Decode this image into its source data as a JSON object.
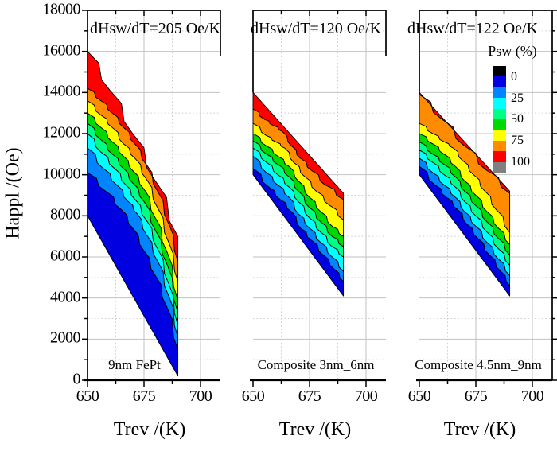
{
  "figure": {
    "bg": "#ffffff"
  },
  "axes": {
    "y_title": "Happl /(Oe)",
    "x_title": "Trev /(K)",
    "y_tick_labels": [
      "0",
      "2000",
      "4000",
      "6000",
      "8000",
      "10000",
      "12000",
      "14000",
      "16000",
      "18000"
    ],
    "x_tick_labels": [
      "650",
      "675",
      "700"
    ]
  },
  "legend": {
    "title": "Psw (%)",
    "tick_labels": [
      "0",
      "25",
      "50",
      "75",
      "100"
    ],
    "colors": [
      "#000000",
      "#0000E0",
      "#0084FF",
      "#00FFFF",
      "#00FF85",
      "#00D900",
      "#FFFF00",
      "#FF8C00",
      "#FF0000",
      "#808080"
    ]
  },
  "chart_data": {
    "type": "contour-filled",
    "xlabel": "Trev /(K)",
    "ylabel": "Happl /(Oe)",
    "x_range": [
      650,
      710
    ],
    "y_range": [
      0,
      18000
    ],
    "x_major_ticks": [
      650,
      675,
      700
    ],
    "x_minor_ticks": [
      662.5,
      687.5
    ],
    "y_major_step": 2000,
    "y_minor_step": 1000,
    "psw_levels_percent": [
      0,
      12.5,
      25,
      37.5,
      50,
      62.5,
      75,
      87.5,
      100
    ],
    "band_colors": [
      "#0000E0",
      "#0084FF",
      "#00FFFF",
      "#00FF85",
      "#00D900",
      "#FFFF00",
      "#FF8C00",
      "#FF0000"
    ],
    "panels": [
      {
        "annotation": "dHsw/dT=205 Oe/K",
        "sample_label": "9nm FePt",
        "boundaries": [
          [
            [
              650,
              8000
            ],
            [
              690,
              200
            ]
          ],
          [
            [
              650,
              10100
            ],
            [
              658,
              9200
            ],
            [
              665,
              8300
            ],
            [
              670,
              7400
            ],
            [
              675,
              6300
            ],
            [
              680,
              5100
            ],
            [
              685,
              3600
            ],
            [
              690,
              1500
            ]
          ],
          [
            [
              650,
              11300
            ],
            [
              657,
              10300
            ],
            [
              663,
              9500
            ],
            [
              668,
              8700
            ],
            [
              672,
              8100
            ],
            [
              676,
              7100
            ],
            [
              681,
              5800
            ],
            [
              686,
              4100
            ],
            [
              690,
              2100
            ]
          ],
          [
            [
              650,
              12000
            ],
            [
              656,
              11100
            ],
            [
              662,
              10300
            ],
            [
              667,
              9500
            ],
            [
              671,
              8800
            ],
            [
              676,
              7800
            ],
            [
              681,
              6400
            ],
            [
              686,
              4700
            ],
            [
              690,
              2700
            ]
          ],
          [
            [
              650,
              12500
            ],
            [
              656,
              11700
            ],
            [
              661,
              11000
            ],
            [
              666,
              10300
            ],
            [
              670,
              9600
            ],
            [
              675,
              8700
            ],
            [
              680,
              7300
            ],
            [
              685,
              5700
            ],
            [
              690,
              3300
            ]
          ],
          [
            [
              650,
              13000
            ],
            [
              656,
              12300
            ],
            [
              661,
              11600
            ],
            [
              666,
              10900
            ],
            [
              670,
              10200
            ],
            [
              675,
              9300
            ],
            [
              680,
              7900
            ],
            [
              685,
              6300
            ],
            [
              690,
              3900
            ]
          ],
          [
            [
              650,
              13600
            ],
            [
              656,
              12900
            ],
            [
              661,
              12300
            ],
            [
              666,
              11500
            ],
            [
              671,
              10800
            ],
            [
              676,
              9800
            ],
            [
              681,
              8400
            ],
            [
              686,
              6700
            ],
            [
              690,
              4800
            ]
          ],
          [
            [
              650,
              14200
            ],
            [
              656,
              13600
            ],
            [
              661,
              13000
            ],
            [
              666,
              12300
            ],
            [
              671,
              11500
            ],
            [
              676,
              10500
            ],
            [
              681,
              9200
            ],
            [
              686,
              7600
            ],
            [
              690,
              5800
            ]
          ],
          [
            [
              650,
              16000
            ],
            [
              660,
              14100
            ],
            [
              670,
              12000
            ],
            [
              680,
              9700
            ],
            [
              690,
              7000
            ]
          ]
        ]
      },
      {
        "annotation": "dHsw/dT=120 Oe/K",
        "sample_label": "Composite 3nm_6nm",
        "boundaries": [
          [
            [
              650,
              10000
            ],
            [
              690,
              4100
            ]
          ],
          [
            [
              650,
              10300
            ],
            [
              657,
              9400
            ],
            [
              662,
              8800
            ],
            [
              667,
              8200
            ],
            [
              671,
              7400
            ],
            [
              676,
              6800
            ],
            [
              681,
              6100
            ],
            [
              686,
              5400
            ],
            [
              690,
              4800
            ]
          ],
          [
            [
              650,
              10900
            ],
            [
              656,
              10100
            ],
            [
              661,
              9500
            ],
            [
              666,
              8900
            ],
            [
              670,
              8100
            ],
            [
              675,
              7400
            ],
            [
              680,
              6700
            ],
            [
              685,
              6000
            ],
            [
              690,
              5300
            ]
          ],
          [
            [
              650,
              11300
            ],
            [
              656,
              10600
            ],
            [
              661,
              10000
            ],
            [
              666,
              9400
            ],
            [
              670,
              8700
            ],
            [
              675,
              7900
            ],
            [
              680,
              7200
            ],
            [
              685,
              6500
            ],
            [
              690,
              6000
            ]
          ],
          [
            [
              650,
              11650
            ],
            [
              656,
              11000
            ],
            [
              661,
              10500
            ],
            [
              666,
              9900
            ],
            [
              670,
              9200
            ],
            [
              675,
              8400
            ],
            [
              680,
              7700
            ],
            [
              685,
              7000
            ],
            [
              690,
              6500
            ]
          ],
          [
            [
              650,
              12000
            ],
            [
              656,
              11400
            ],
            [
              661,
              10900
            ],
            [
              666,
              10400
            ],
            [
              670,
              9700
            ],
            [
              675,
              8900
            ],
            [
              680,
              8200
            ],
            [
              685,
              7500
            ],
            [
              690,
              7000
            ]
          ],
          [
            [
              650,
              12500
            ],
            [
              656,
              11900
            ],
            [
              660,
              11600
            ],
            [
              664,
              11300
            ],
            [
              668,
              10600
            ],
            [
              673,
              9900
            ],
            [
              678,
              9200
            ],
            [
              684,
              8500
            ],
            [
              690,
              7800
            ]
          ],
          [
            [
              650,
              13200
            ],
            [
              655,
              12700
            ],
            [
              659,
              12400
            ],
            [
              663,
              12100
            ],
            [
              667,
              11400
            ],
            [
              671,
              10800
            ],
            [
              676,
              10200
            ],
            [
              682,
              9500
            ],
            [
              690,
              8800
            ]
          ],
          [
            [
              650,
              14000
            ],
            [
              690,
              9100
            ]
          ]
        ]
      },
      {
        "annotation": "dHsw/dT=122 Oe/K",
        "sample_label": "Composite 4.5nm_9nm",
        "boundaries": [
          [
            [
              650,
              10000
            ],
            [
              690,
              4100
            ]
          ],
          [
            [
              650,
              10400
            ],
            [
              657,
              9500
            ],
            [
              662,
              8900
            ],
            [
              667,
              8300
            ],
            [
              671,
              7600
            ],
            [
              676,
              6900
            ],
            [
              681,
              6100
            ],
            [
              686,
              5300
            ],
            [
              690,
              4600
            ]
          ],
          [
            [
              650,
              10800
            ],
            [
              656,
              10100
            ],
            [
              661,
              9500
            ],
            [
              666,
              8900
            ],
            [
              670,
              8200
            ],
            [
              675,
              7500
            ],
            [
              680,
              6700
            ],
            [
              685,
              5900
            ],
            [
              690,
              5100
            ]
          ],
          [
            [
              650,
              11200
            ],
            [
              656,
              10600
            ],
            [
              661,
              10000
            ],
            [
              666,
              9400
            ],
            [
              670,
              8700
            ],
            [
              675,
              8000
            ],
            [
              680,
              7200
            ],
            [
              685,
              6400
            ],
            [
              690,
              5600
            ]
          ],
          [
            [
              650,
              11600
            ],
            [
              656,
              11000
            ],
            [
              661,
              10500
            ],
            [
              666,
              9900
            ],
            [
              670,
              9200
            ],
            [
              675,
              8500
            ],
            [
              680,
              7700
            ],
            [
              685,
              6900
            ],
            [
              690,
              6100
            ]
          ],
          [
            [
              650,
              12000
            ],
            [
              656,
              11500
            ],
            [
              661,
              11000
            ],
            [
              666,
              10400
            ],
            [
              670,
              9700
            ],
            [
              675,
              9000
            ],
            [
              680,
              8200
            ],
            [
              685,
              7400
            ],
            [
              690,
              6600
            ]
          ],
          [
            [
              650,
              12500
            ],
            [
              656,
              12000
            ],
            [
              661,
              11600
            ],
            [
              665,
              11300
            ],
            [
              669,
              10700
            ],
            [
              674,
              10000
            ],
            [
              679,
              9200
            ],
            [
              684,
              8300
            ],
            [
              690,
              7200
            ]
          ],
          [
            [
              650,
              13900
            ],
            [
              660,
              12700
            ],
            [
              670,
              11400
            ],
            [
              680,
              10200
            ],
            [
              690,
              9100
            ]
          ],
          [
            [
              650,
              14000
            ],
            [
              690,
              9200
            ]
          ]
        ]
      }
    ]
  }
}
